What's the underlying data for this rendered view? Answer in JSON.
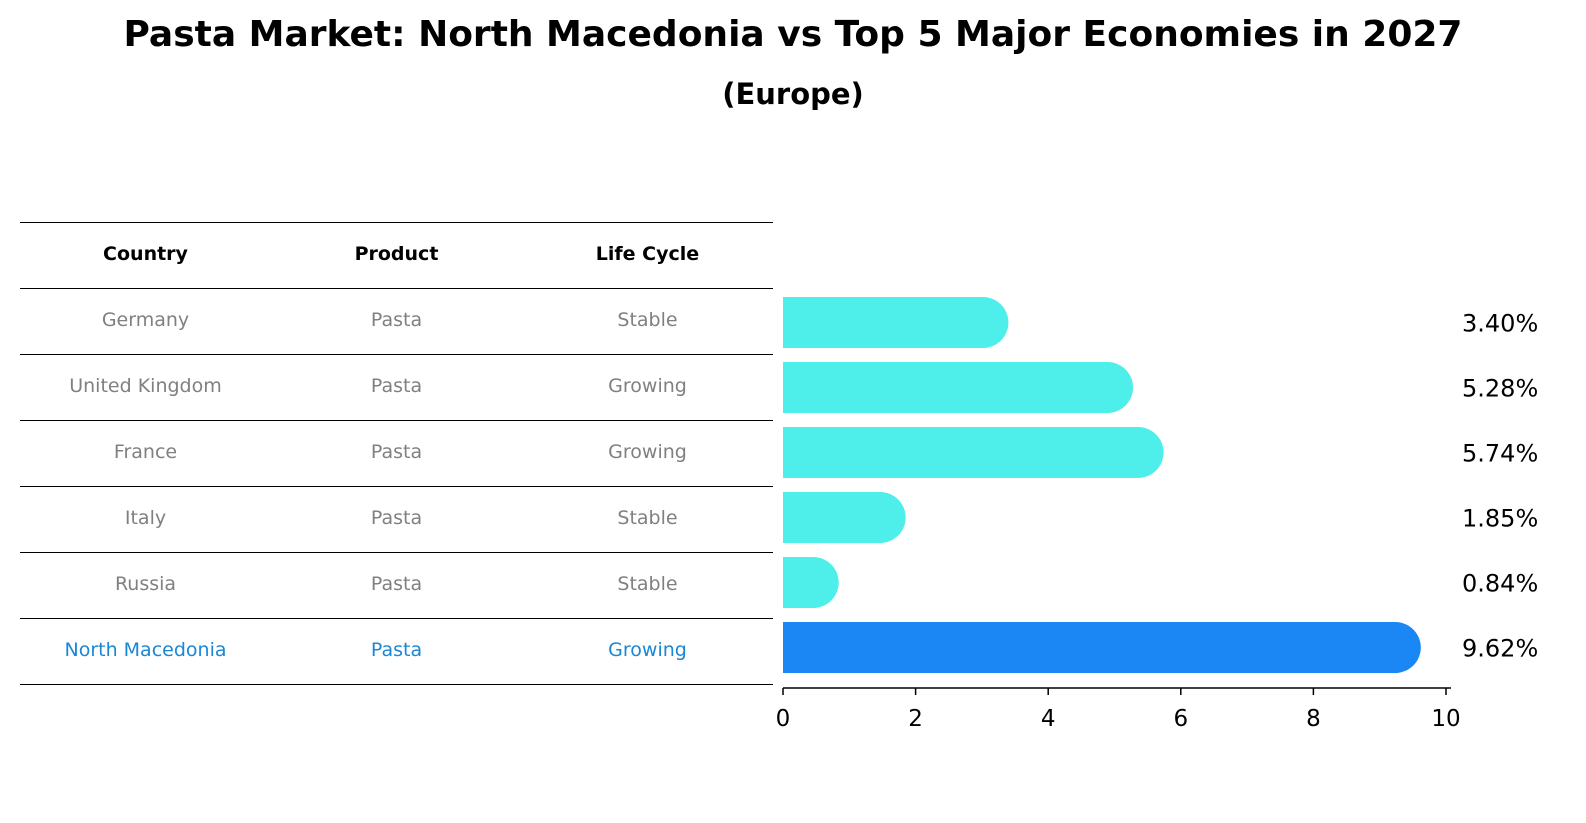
{
  "title": "Pasta Market: North Macedonia vs Top 5 Major Economies in 2027",
  "subtitle": "(Europe)",
  "table": {
    "headers": [
      "Country",
      "Product",
      "Life Cycle"
    ],
    "rows": [
      [
        "Germany",
        "Pasta",
        "Stable"
      ],
      [
        "United Kingdom",
        "Pasta",
        "Growing"
      ],
      [
        "France",
        "Pasta",
        "Growing"
      ],
      [
        "Italy",
        "Pasta",
        "Stable"
      ],
      [
        "Russia",
        "Pasta",
        "Stable"
      ],
      [
        "North Macedonia",
        "Pasta",
        "Growing"
      ]
    ]
  },
  "chart_data": {
    "type": "bar",
    "orientation": "horizontal",
    "categories": [
      "Germany",
      "United Kingdom",
      "France",
      "Italy",
      "Russia",
      "North Macedonia"
    ],
    "values": [
      3.4,
      5.28,
      5.74,
      1.85,
      0.84,
      9.62
    ],
    "value_labels": [
      "3.40%",
      "5.28%",
      "5.74%",
      "1.85%",
      "0.84%",
      "9.62%"
    ],
    "xlim": [
      0,
      10
    ],
    "xticks": [
      0,
      2,
      4,
      6,
      8,
      10
    ],
    "highlight_index": 5,
    "colors": {
      "default": "#4eeeea",
      "highlight": "#1a87f5",
      "highlight_text": "#1a87d6",
      "muted_text": "#808080"
    },
    "grid": false
  }
}
